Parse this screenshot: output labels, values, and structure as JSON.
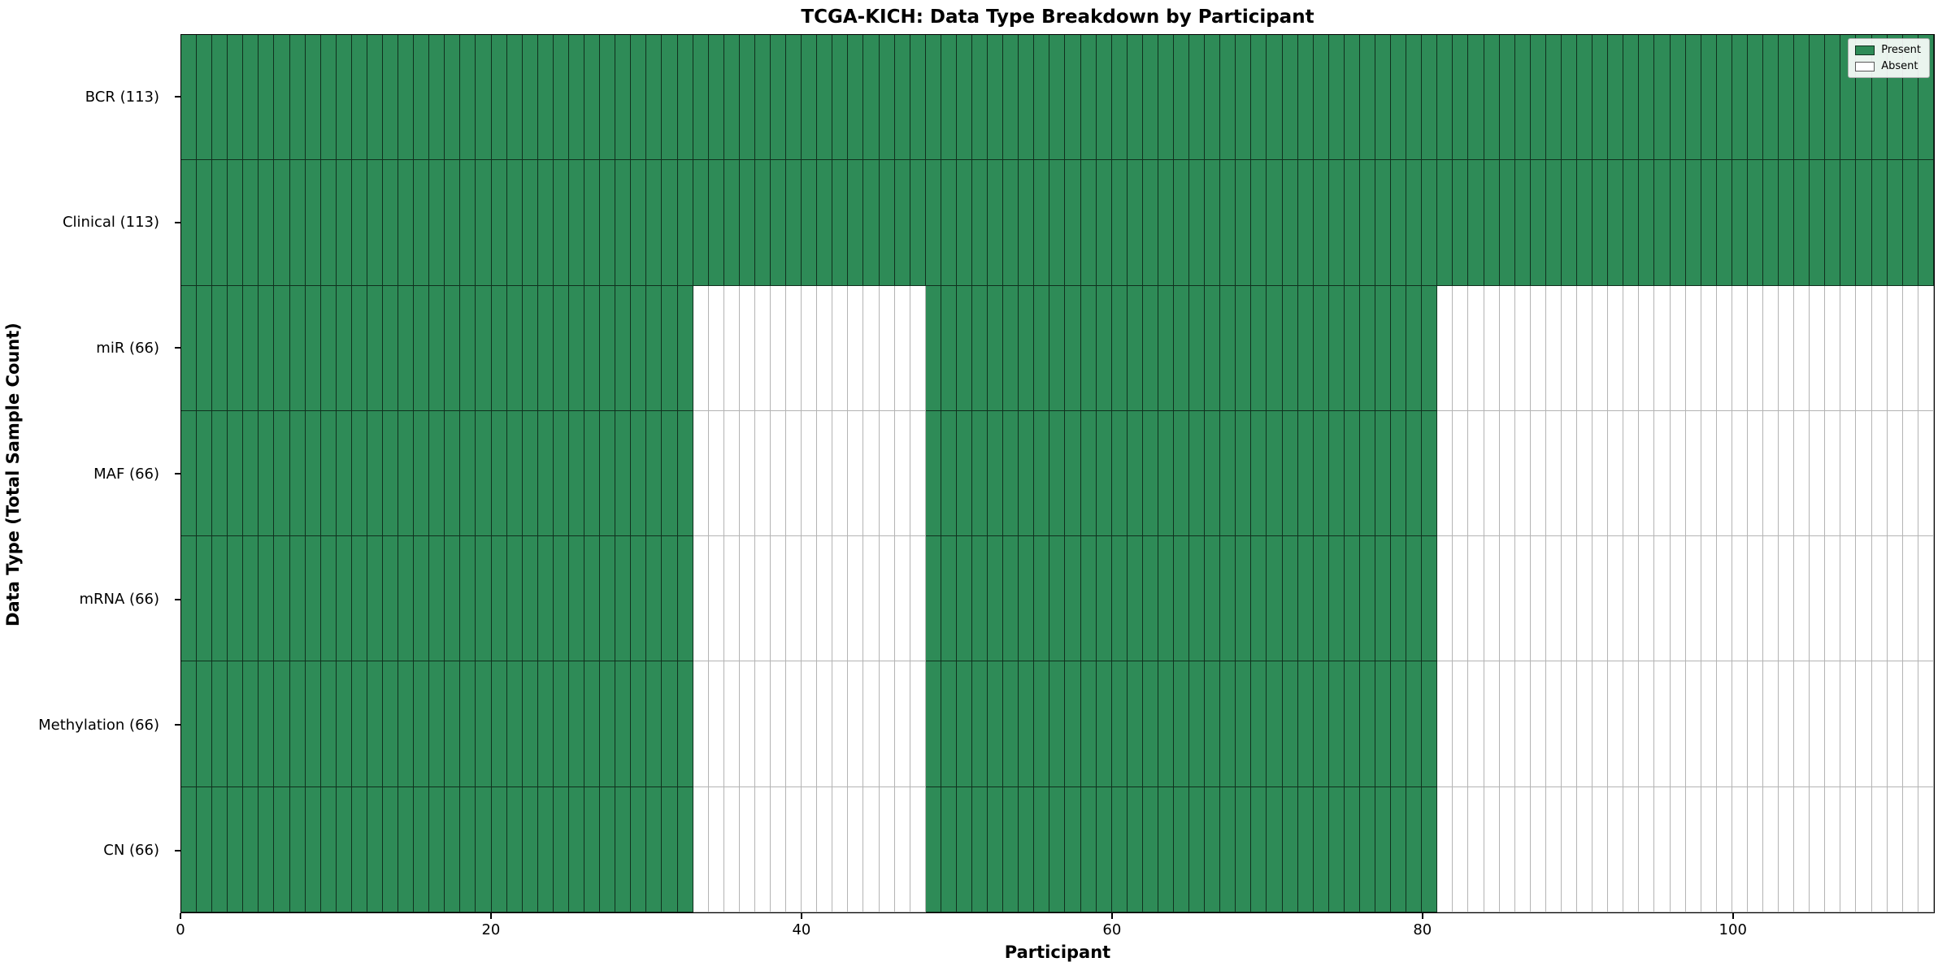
{
  "chart_data": {
    "type": "heatmap",
    "title": "TCGA-KICH: Data Type Breakdown by Participant",
    "xlabel": "Participant",
    "ylabel": "Data Type (Total Sample Count)",
    "n_participants": 113,
    "x_ticks": [
      0,
      20,
      40,
      60,
      80,
      100
    ],
    "legend": [
      {
        "label": "Present",
        "color": "#2e8b57"
      },
      {
        "label": "Absent",
        "color": "#ffffff"
      }
    ],
    "colors": {
      "present": "#2e8b57",
      "absent": "#ffffff",
      "grid_present": "rgba(0,0,0,0.65)",
      "grid_absent": "#b4b4b4"
    },
    "rows": [
      {
        "label": "BCR (113)",
        "count": 113,
        "present_ranges": [
          [
            0,
            113
          ]
        ]
      },
      {
        "label": "Clinical (113)",
        "count": 113,
        "present_ranges": [
          [
            0,
            113
          ]
        ]
      },
      {
        "label": "miR (66)",
        "count": 66,
        "present_ranges": [
          [
            0,
            33
          ],
          [
            48,
            81
          ]
        ]
      },
      {
        "label": "MAF (66)",
        "count": 66,
        "present_ranges": [
          [
            0,
            33
          ],
          [
            48,
            81
          ]
        ]
      },
      {
        "label": "mRNA (66)",
        "count": 66,
        "present_ranges": [
          [
            0,
            33
          ],
          [
            48,
            81
          ]
        ]
      },
      {
        "label": "Methylation (66)",
        "count": 66,
        "present_ranges": [
          [
            0,
            33
          ],
          [
            48,
            81
          ]
        ]
      },
      {
        "label": "CN (66)",
        "count": 66,
        "present_ranges": [
          [
            0,
            33
          ],
          [
            48,
            81
          ]
        ]
      }
    ]
  }
}
